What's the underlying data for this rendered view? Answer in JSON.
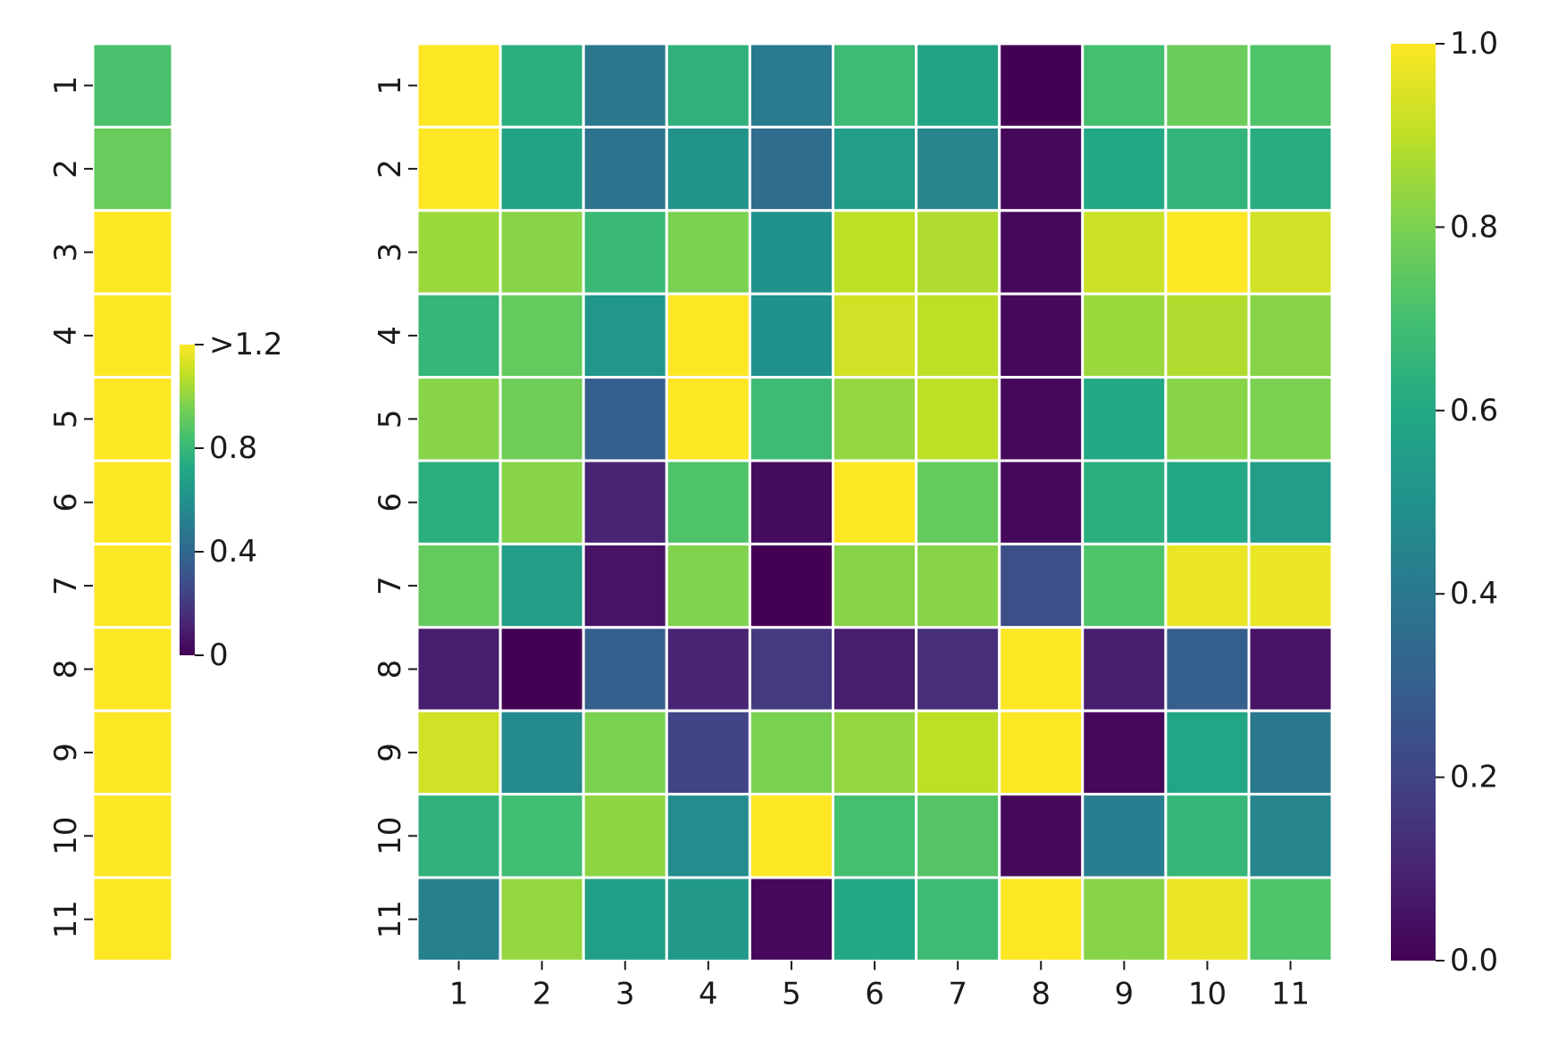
{
  "chart_data": [
    {
      "type": "heatmap",
      "colormap": "viridis",
      "rows": [
        "1",
        "2",
        "3",
        "4",
        "5",
        "6",
        "7",
        "8",
        "9",
        "10",
        "11"
      ],
      "columns": [],
      "values": [
        [
          0.85
        ],
        [
          0.92
        ],
        [
          1.3
        ],
        [
          1.35
        ],
        [
          1.4
        ],
        [
          1.45
        ],
        [
          1.5
        ],
        [
          1.5
        ],
        [
          1.5
        ],
        [
          1.5
        ],
        [
          1.5
        ]
      ],
      "colorbar": {
        "range": [
          0,
          1.2
        ],
        "ticks": [
          0,
          0.4,
          0.8,
          1.2
        ],
        "tick_labels": [
          "0",
          "0.4",
          "0.8",
          ">1.2"
        ]
      },
      "grid": true
    },
    {
      "type": "heatmap",
      "colormap": "viridis",
      "rows": [
        "1",
        "2",
        "3",
        "4",
        "5",
        "6",
        "7",
        "8",
        "9",
        "10",
        "11"
      ],
      "columns": [
        "1",
        "2",
        "3",
        "4",
        "5",
        "6",
        "7",
        "8",
        "9",
        "10",
        "11"
      ],
      "values": [
        [
          1.0,
          0.63,
          0.4,
          0.64,
          0.41,
          0.68,
          0.58,
          0.0,
          0.7,
          0.77,
          0.72
        ],
        [
          1.0,
          0.58,
          0.38,
          0.51,
          0.35,
          0.55,
          0.45,
          0.02,
          0.6,
          0.65,
          0.62
        ],
        [
          0.85,
          0.82,
          0.67,
          0.8,
          0.5,
          0.9,
          0.88,
          0.02,
          0.92,
          1.0,
          0.93
        ],
        [
          0.66,
          0.76,
          0.52,
          1.0,
          0.5,
          0.93,
          0.9,
          0.02,
          0.85,
          0.88,
          0.82
        ],
        [
          0.82,
          0.78,
          0.3,
          1.0,
          0.68,
          0.84,
          0.9,
          0.02,
          0.6,
          0.82,
          0.8
        ],
        [
          0.63,
          0.82,
          0.1,
          0.72,
          0.03,
          1.0,
          0.76,
          0.02,
          0.63,
          0.6,
          0.55
        ],
        [
          0.76,
          0.55,
          0.05,
          0.81,
          0.0,
          0.82,
          0.82,
          0.24,
          0.72,
          0.97,
          0.97
        ],
        [
          0.08,
          0.0,
          0.3,
          0.1,
          0.17,
          0.08,
          0.13,
          1.0,
          0.08,
          0.3,
          0.05
        ],
        [
          0.93,
          0.47,
          0.8,
          0.2,
          0.8,
          0.84,
          0.9,
          1.0,
          0.02,
          0.59,
          0.4
        ],
        [
          0.64,
          0.69,
          0.83,
          0.48,
          1.0,
          0.7,
          0.73,
          0.02,
          0.42,
          0.66,
          0.45
        ],
        [
          0.43,
          0.84,
          0.56,
          0.53,
          0.02,
          0.6,
          0.68,
          1.0,
          0.82,
          0.97,
          0.72
        ]
      ],
      "colorbar": {
        "range": [
          0,
          1
        ],
        "ticks": [
          0,
          0.2,
          0.4,
          0.6,
          0.8,
          1.0
        ],
        "tick_labels": [
          "0.0",
          "0.2",
          "0.4",
          "0.6",
          "0.8",
          "1.0"
        ]
      },
      "grid": true
    }
  ]
}
